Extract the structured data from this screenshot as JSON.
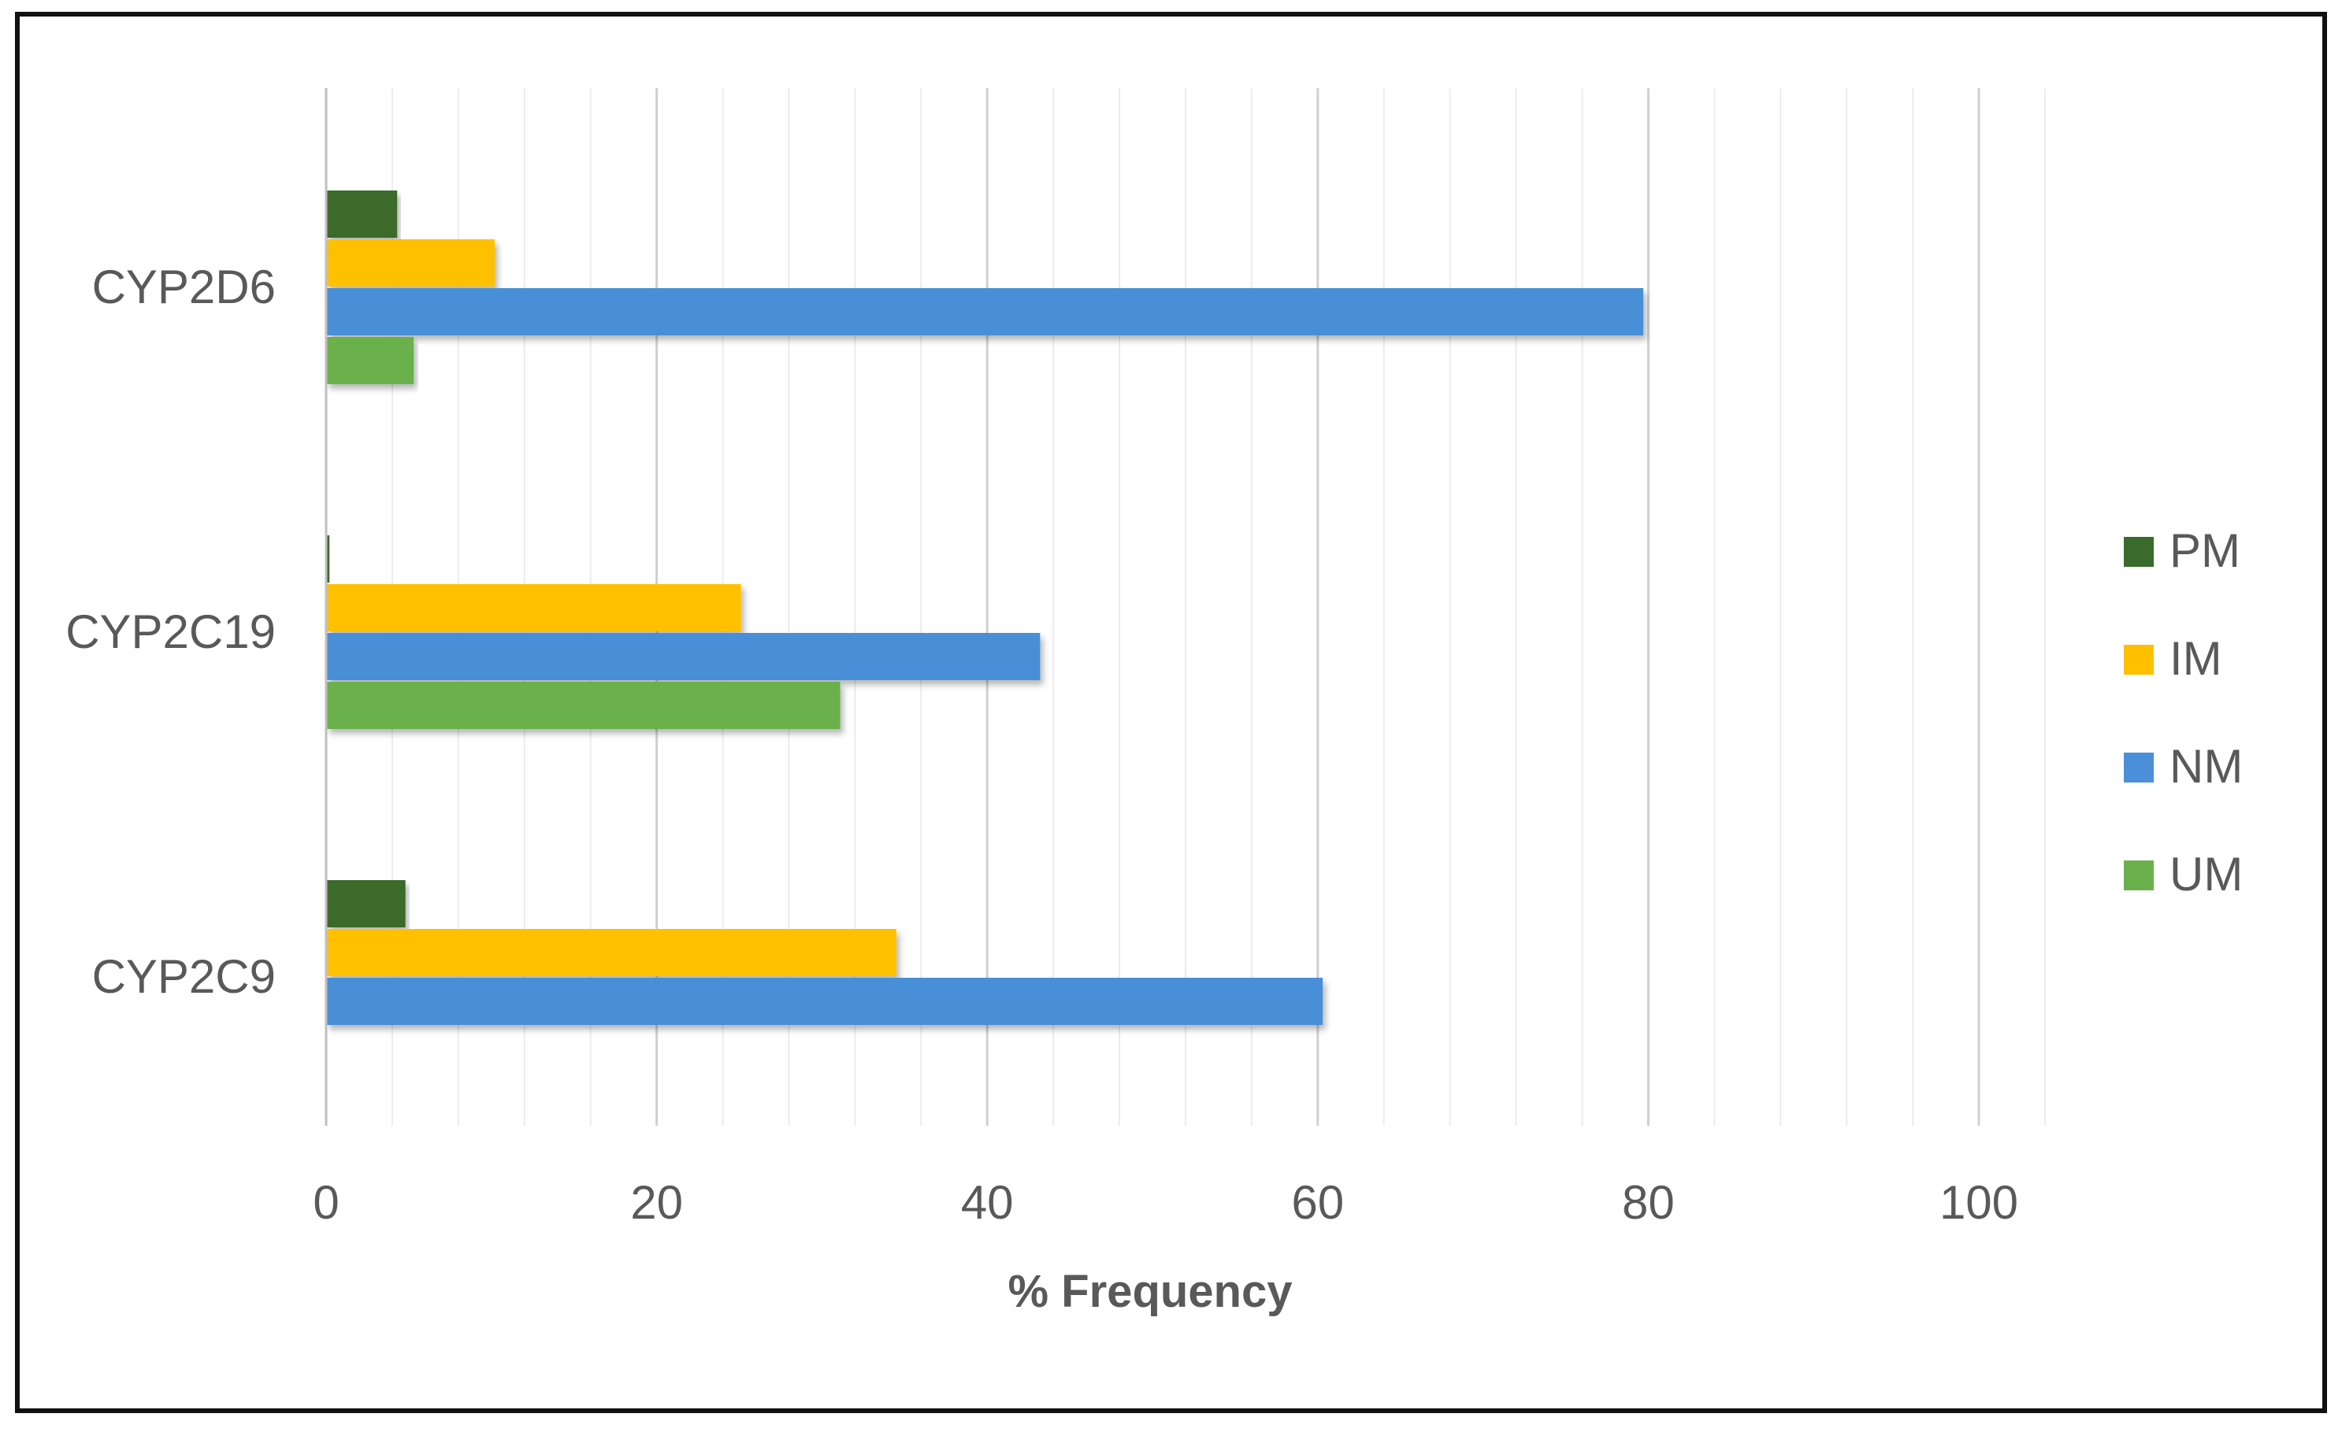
{
  "chart_data": {
    "type": "bar",
    "orientation": "horizontal",
    "categories": [
      "CYP2D6",
      "CYP2C19",
      "CYP2C9"
    ],
    "series": [
      {
        "name": "PM",
        "color": "#3a6a2c",
        "values": [
          4.3,
          0.2,
          4.8
        ]
      },
      {
        "name": "IM",
        "color": "#ffc000",
        "values": [
          10.2,
          25.1,
          34.5
        ]
      },
      {
        "name": "NM",
        "color": "#4a8fd8",
        "values": [
          79.7,
          43.2,
          60.3
        ]
      },
      {
        "name": "UM",
        "color": "#6ab04c",
        "values": [
          5.3,
          31.1,
          0
        ]
      }
    ],
    "xlabel": "% Frequency",
    "ylabel": "",
    "title": "",
    "xlim": [
      0,
      100
    ],
    "x_ticks": [
      0,
      20,
      40,
      60,
      80,
      100
    ],
    "grid": true,
    "legend_position": "right"
  }
}
